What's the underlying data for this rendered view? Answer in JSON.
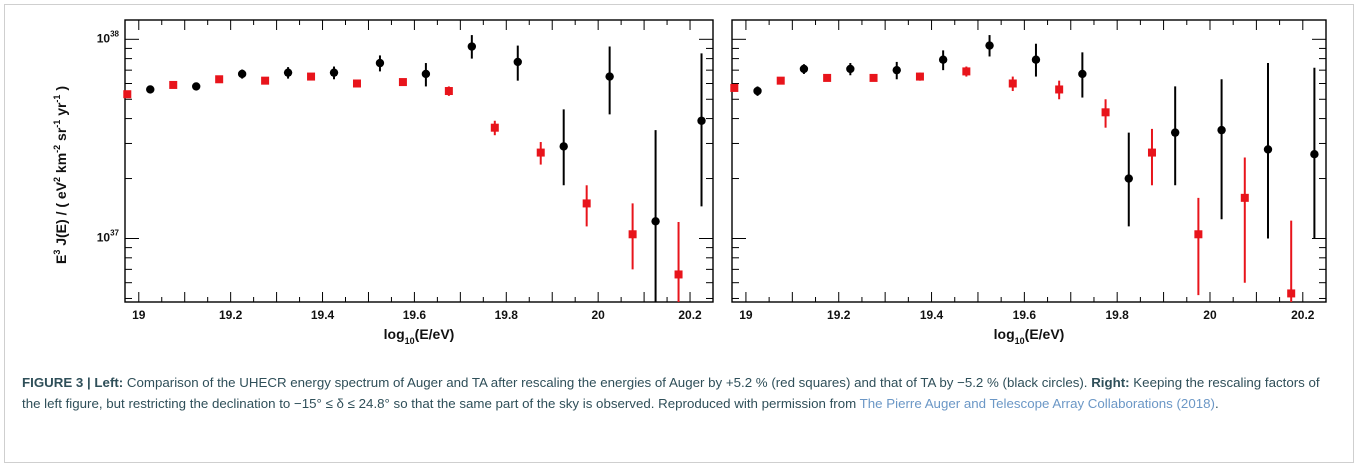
{
  "chart_data": [
    {
      "type": "scatter",
      "panel": "left",
      "xlabel": "log10(E/eV)",
      "ylabel": "E3 J(E) / ( eV2 km-2 sr-1 yr-1 )",
      "xlim": [
        18.97,
        20.25
      ],
      "ylim": [
        4.8e+36,
        1.25e+38
      ],
      "yscale": "log",
      "xticks": [
        "19",
        "19.2",
        "19.4",
        "19.6",
        "19.8",
        "20",
        "20.2"
      ],
      "yticks": [
        "10^37",
        "10^38"
      ],
      "grid": false,
      "series": [
        {
          "marker": "square",
          "color": "#e8141b",
          "x": [
            18.975,
            19.075,
            19.175,
            19.275,
            19.375,
            19.475,
            19.575,
            19.675,
            19.775,
            19.875,
            19.975,
            20.075,
            20.175
          ],
          "y": [
            5.3e+37,
            5.9e+37,
            6.3e+37,
            6.2e+37,
            6.5e+37,
            6e+37,
            6.1e+37,
            5.5e+37,
            3.6e+37,
            2.7e+37,
            1.5e+37,
            1.05e+37,
            6.6e+36
          ],
          "err_lo": [
            1e+36,
            1e+36,
            1e+36,
            1e+36,
            1e+36,
            1.5e+36,
            2e+36,
            3e+36,
            3e+36,
            3.5e+36,
            3.5e+36,
            3.5e+36,
            2e+36
          ],
          "err_hi": [
            1e+36,
            1e+36,
            1e+36,
            1e+36,
            1e+36,
            1.5e+36,
            2e+36,
            3e+36,
            3e+36,
            3.5e+36,
            3.5e+36,
            4.5e+36,
            5.5e+36
          ]
        },
        {
          "marker": "circle",
          "color": "#000000",
          "x": [
            19.025,
            19.125,
            19.225,
            19.325,
            19.425,
            19.525,
            19.625,
            19.725,
            19.825,
            19.925,
            20.025,
            20.125,
            20.225
          ],
          "y": [
            5.6e+37,
            5.8e+37,
            6.7e+37,
            6.8e+37,
            6.8e+37,
            7.6e+37,
            6.7e+37,
            9.2e+37,
            7.7e+37,
            2.9e+37,
            6.5e+37,
            1.22e+37,
            3.9e+37
          ],
          "err_lo": [
            1e+36,
            2e+36,
            3.5e+36,
            4.5e+36,
            5e+36,
            7e+36,
            9e+36,
            1.2e+37,
            1.5e+37,
            1.05e+37,
            2.3e+37,
            7.5e+36,
            2.45e+37
          ],
          "err_hi": [
            1e+36,
            2e+36,
            3.5e+36,
            4.5e+36,
            5e+36,
            7e+36,
            9e+36,
            1.3e+37,
            1.6e+37,
            1.55e+37,
            2.7e+37,
            2.28e+37,
            4.6e+37
          ]
        }
      ]
    },
    {
      "type": "scatter",
      "panel": "right",
      "xlabel": "log10(E/eV)",
      "ylabel": "",
      "xlim": [
        18.97,
        20.25
      ],
      "ylim": [
        4.8e+36,
        1.25e+38
      ],
      "yscale": "log",
      "xticks": [
        "19",
        "19.2",
        "19.4",
        "19.6",
        "19.8",
        "20",
        "20.2"
      ],
      "yticks": [],
      "grid": false,
      "series": [
        {
          "marker": "square",
          "color": "#e8141b",
          "x": [
            18.975,
            19.075,
            19.175,
            19.275,
            19.375,
            19.475,
            19.575,
            19.675,
            19.775,
            19.875,
            19.975,
            20.075,
            20.175
          ],
          "y": [
            5.7e+37,
            6.2e+37,
            6.4e+37,
            6.4e+37,
            6.5e+37,
            6.9e+37,
            6e+37,
            5.6e+37,
            4.3e+37,
            2.7e+37,
            1.05e+37,
            1.6e+37,
            5.3e+36
          ],
          "err_lo": [
            1.5e+36,
            1.5e+36,
            1.5e+36,
            2e+36,
            3e+36,
            4e+36,
            5e+36,
            6e+36,
            7e+36,
            8.5e+36,
            5.3e+36,
            1e+37,
            4e+36
          ],
          "err_hi": [
            1.5e+36,
            1.5e+36,
            1.5e+36,
            2e+36,
            3e+36,
            4e+36,
            5e+36,
            6e+36,
            7e+36,
            8.5e+36,
            5.5e+36,
            9.5e+36,
            7e+36
          ]
        },
        {
          "marker": "circle",
          "color": "#000000",
          "x": [
            19.025,
            19.125,
            19.225,
            19.325,
            19.425,
            19.525,
            19.625,
            19.725,
            19.825,
            19.925,
            20.025,
            20.125,
            20.225
          ],
          "y": [
            5.5e+37,
            7.1e+37,
            7.1e+37,
            7e+37,
            7.9e+37,
            9.3e+37,
            7.9e+37,
            6.7e+37,
            2e+37,
            3.4e+37,
            3.5e+37,
            2.8e+37,
            2.65e+37
          ],
          "err_lo": [
            3e+36,
            4e+36,
            5e+36,
            7e+36,
            9e+36,
            1.1e+37,
            1.4e+37,
            1.6e+37,
            8.5e+36,
            1.55e+37,
            2.25e+37,
            1.8e+37,
            1.65e+37
          ],
          "err_hi": [
            3e+36,
            4e+36,
            5e+36,
            7e+36,
            9e+36,
            1.2e+37,
            1.6e+37,
            1.9e+37,
            1.4e+37,
            2.4e+37,
            2.8e+37,
            4.8e+37,
            4.55e+37
          ]
        }
      ]
    }
  ],
  "caption": {
    "figure_label": "FIGURE 3 | Left:",
    "text_1": " Comparison of the UHECR energy spectrum of Auger and TA after rescaling the energies of Auger by +5.2 % (red squares) and that of TA by −5.2 % (black circles). ",
    "right_label": "Right:",
    "text_2": " Keeping the rescaling factors of the left figure, but restricting the declination to −15° ≤ δ ≤ 24.8° so that the same part of the sky is observed. Reproduced with permission from ",
    "reference": "The Pierre Auger and Telescope Array Collaborations (2018)",
    "text_3": "."
  }
}
